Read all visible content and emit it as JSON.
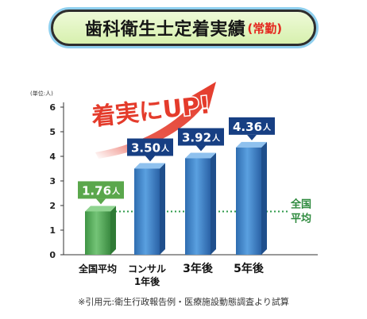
{
  "header": {
    "title": "歯科衛生士定着実績",
    "subtitle": "(常勤)"
  },
  "chart_data": {
    "type": "bar",
    "unit_label": "(単位:人)",
    "categories": [
      "全国平均",
      "コンサル\n1年後",
      "3年後",
      "5年後"
    ],
    "values": [
      1.76,
      3.5,
      3.92,
      4.36
    ],
    "value_labels": [
      "1.76",
      "3.50",
      "3.92",
      "4.36"
    ],
    "value_unit": "人",
    "ylim": [
      0,
      6
    ],
    "yticks": [
      0,
      1,
      2,
      3,
      4,
      5,
      6
    ],
    "reference_line": {
      "value": 1.76,
      "label": "全国\n平均"
    },
    "highlight": "着実にUP!",
    "colors": {
      "average_bar": "#5bb060",
      "bar": "#3a7fc4",
      "label_green": "#5aa74c",
      "label_blue": "#173f83",
      "arrow": "#e43b2b"
    }
  },
  "footnote": "※引用元:衛生行政報告例・医療施設動態調査より試算"
}
